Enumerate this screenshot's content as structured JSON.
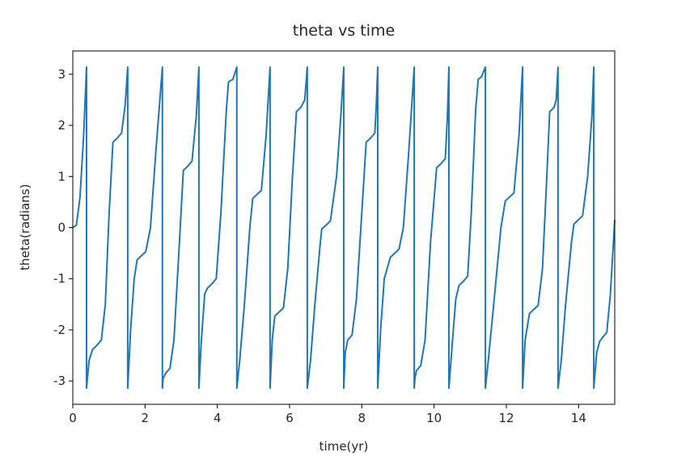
{
  "chart_data": {
    "type": "line",
    "title": "theta vs time",
    "xlabel": "time(yr)",
    "ylabel": "theta(radians)",
    "color": "#1f77b4",
    "xlim": [
      0,
      15
    ],
    "xticks": [
      0,
      2,
      4,
      6,
      8,
      10,
      12,
      14
    ],
    "ylim": [
      -3.456,
      3.456
    ],
    "yticks": [
      -3,
      -2,
      -1,
      0,
      1,
      2,
      3
    ],
    "x": [
      0,
      0.1,
      0.2,
      0.3,
      0.38,
      0.38,
      0.45,
      0.55,
      0.67,
      0.79,
      0.9,
      1.0,
      1.11,
      1.23,
      1.35,
      1.45,
      1.52,
      1.52,
      1.6,
      1.7,
      1.78,
      1.9,
      2.02,
      2.15,
      2.3,
      2.48,
      2.48,
      2.5,
      2.57,
      2.69,
      2.8,
      2.95,
      3.06,
      3.18,
      3.3,
      3.42,
      3.49,
      3.49,
      3.55,
      3.65,
      3.73,
      3.85,
      3.97,
      4.1,
      4.25,
      4.31,
      4.43,
      4.54,
      4.54,
      4.62,
      4.75,
      4.9,
      4.98,
      5.1,
      5.22,
      5.35,
      5.46,
      5.46,
      5.52,
      5.59,
      5.71,
      5.83,
      5.95,
      6.08,
      6.19,
      6.31,
      6.42,
      6.49,
      6.49,
      6.58,
      6.7,
      6.85,
      6.89,
      7.01,
      7.13,
      7.3,
      7.42,
      7.5,
      7.5,
      7.54,
      7.61,
      7.73,
      7.85,
      8.0,
      8.12,
      8.24,
      8.36,
      8.4,
      8.44,
      8.44,
      8.52,
      8.62,
      8.79,
      8.91,
      9.03,
      9.15,
      9.3,
      9.45,
      9.45,
      9.47,
      9.51,
      9.63,
      9.75,
      9.9,
      10.07,
      10.19,
      10.31,
      10.37,
      10.41,
      10.41,
      10.5,
      10.6,
      10.69,
      10.81,
      10.93,
      11.03,
      11.15,
      11.22,
      11.31,
      11.42,
      11.42,
      11.5,
      11.65,
      11.85,
      11.97,
      12.09,
      12.21,
      12.35,
      12.45,
      12.45,
      12.52,
      12.64,
      12.76,
      12.88,
      13.0,
      13.12,
      13.2,
      13.32,
      13.38,
      13.43,
      13.43,
      13.52,
      13.64,
      13.8,
      13.87,
      13.99,
      14.11,
      14.25,
      14.37,
      14.42,
      14.42,
      14.5,
      14.58,
      14.66,
      14.78,
      14.88,
      15.0
    ],
    "values": [
      0,
      0.05,
      0.6,
      1.8,
      3.14,
      -3.14,
      -2.6,
      -2.38,
      -2.3,
      -2.2,
      -1.5,
      0.2,
      1.67,
      1.75,
      1.85,
      2.4,
      3.14,
      -3.14,
      -2.0,
      -1.0,
      -0.63,
      -0.55,
      -0.47,
      0.0,
      1.5,
      3.14,
      -3.14,
      -2.95,
      -2.85,
      -2.75,
      -2.2,
      -0.3,
      1.12,
      1.2,
      1.3,
      2.2,
      3.14,
      -3.14,
      -2.3,
      -1.3,
      -1.18,
      -1.1,
      -1.0,
      0.3,
      2.3,
      2.85,
      2.9,
      3.14,
      -3.14,
      -2.6,
      -1.5,
      0.0,
      0.57,
      0.65,
      0.73,
      1.8,
      3.14,
      -3.14,
      -2.2,
      -1.73,
      -1.65,
      -1.57,
      -0.8,
      1.0,
      2.27,
      2.35,
      2.5,
      3.14,
      -3.14,
      -2.6,
      -1.5,
      -0.3,
      -0.03,
      0.05,
      0.13,
      1.0,
      2.2,
      3.14,
      -3.14,
      -2.45,
      -2.2,
      -2.1,
      -1.4,
      0.3,
      1.67,
      1.75,
      1.85,
      2.4,
      3.14,
      -3.14,
      -2.0,
      -1.0,
      -0.58,
      -0.5,
      -0.42,
      0.0,
      1.5,
      3.14,
      -3.14,
      -2.95,
      -2.8,
      -2.7,
      -2.2,
      -0.3,
      1.17,
      1.25,
      1.35,
      2.2,
      3.14,
      -3.14,
      -2.3,
      -1.4,
      -1.13,
      -1.05,
      -0.95,
      0.3,
      2.3,
      2.9,
      2.95,
      3.14,
      -3.14,
      -2.6,
      -1.5,
      0.0,
      0.52,
      0.6,
      0.68,
      1.8,
      3.14,
      -3.14,
      -2.2,
      -1.68,
      -1.6,
      -1.52,
      -0.8,
      1.0,
      2.27,
      2.35,
      2.5,
      3.14,
      -3.14,
      -2.6,
      -1.5,
      -0.3,
      0.07,
      0.15,
      0.23,
      1.0,
      2.2,
      3.14,
      -3.14,
      -2.45,
      -2.23,
      -2.15,
      -2.05,
      -1.3,
      0.15
    ]
  }
}
